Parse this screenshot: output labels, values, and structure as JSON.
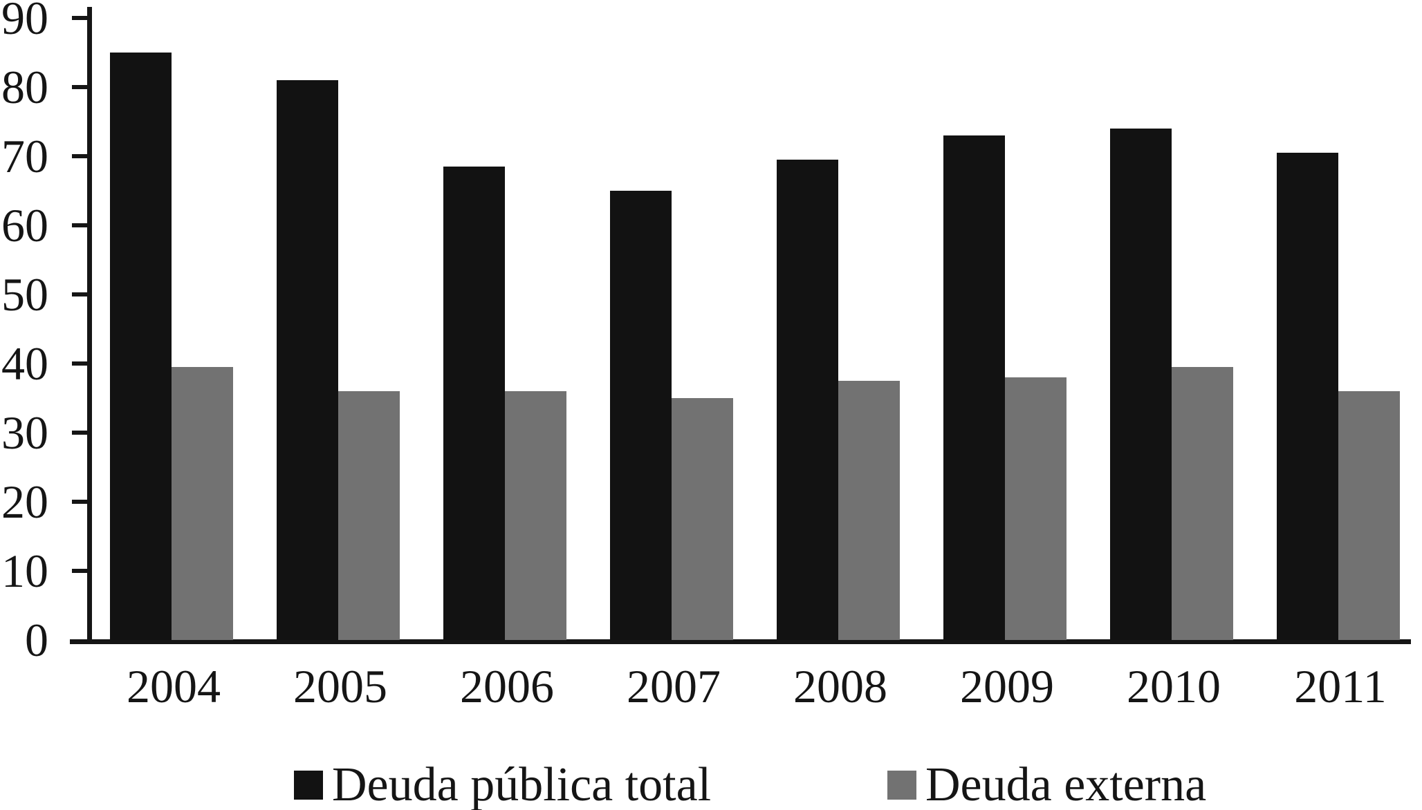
{
  "chart_data": {
    "type": "bar",
    "title": "",
    "xlabel": "",
    "ylabel": "",
    "categories": [
      "2004",
      "2005",
      "2006",
      "2007",
      "2008",
      "2009",
      "2010",
      "2011"
    ],
    "series": [
      {
        "name": "Deuda pública total",
        "color": "#121212",
        "values": [
          85,
          81,
          68.5,
          65,
          69.5,
          73,
          74,
          70.5
        ]
      },
      {
        "name": "Deuda externa",
        "color": "#727272",
        "values": [
          39.5,
          36,
          36,
          35,
          37.5,
          38,
          39.5,
          36
        ]
      }
    ],
    "ylim": [
      0,
      90
    ],
    "yticks": [
      0,
      10,
      20,
      30,
      40,
      50,
      60,
      70,
      80,
      90
    ],
    "grid": false,
    "legend_position": "bottom"
  },
  "colors": {
    "axis": "#151515",
    "background": "#ffffff",
    "bar_total": "#121212",
    "bar_externa": "#727272"
  },
  "legend": {
    "items": [
      {
        "label": "Deuda pública total",
        "swatch": "black-square"
      },
      {
        "label": "Deuda externa",
        "swatch": "gray-square"
      }
    ]
  }
}
